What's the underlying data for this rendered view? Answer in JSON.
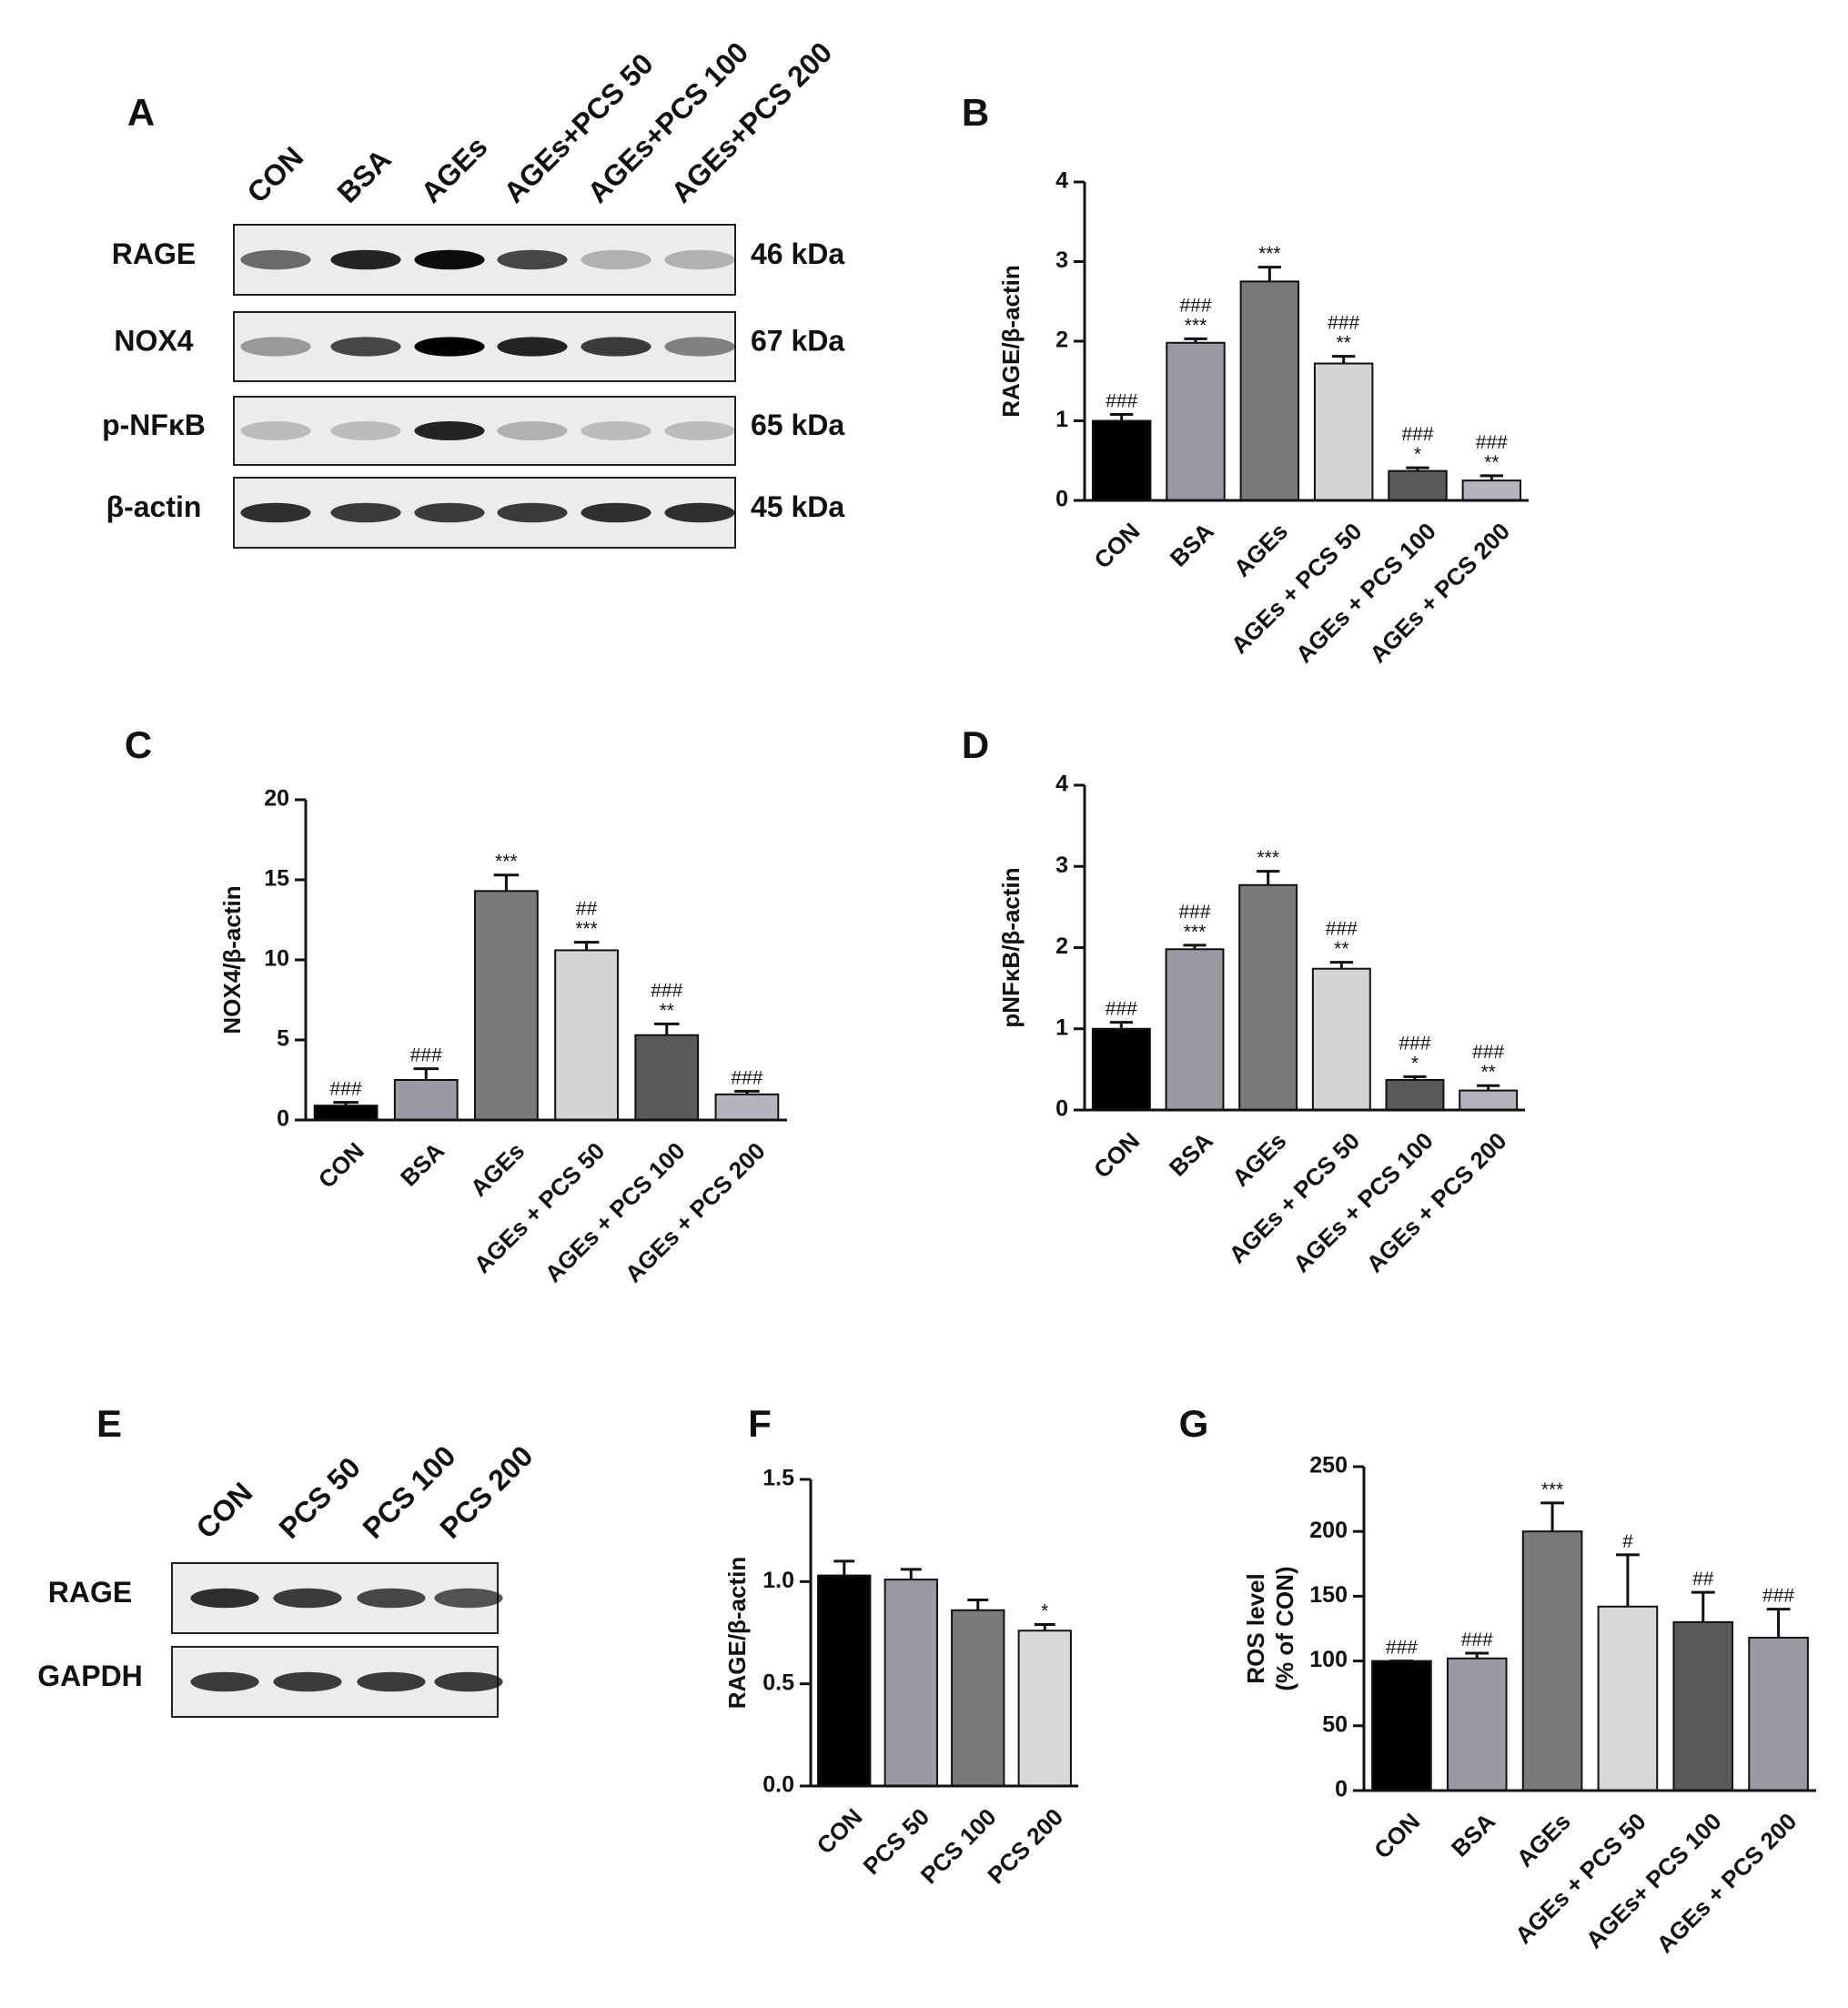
{
  "blots": [
    {
      "panel": "A",
      "lanes": [
        "CON",
        "BSA",
        "AGEs",
        "AGEs+PCS 50",
        "AGEs+PCS 100",
        "AGEs+PCS 200"
      ],
      "rows": [
        {
          "label": "RAGE",
          "size": "46 kDa"
        },
        {
          "label": "NOX4",
          "size": "67 kDa"
        },
        {
          "label": "p-NFκB",
          "size": "65 kDa"
        },
        {
          "label": "β-actin",
          "size": "45 kDa"
        }
      ]
    },
    {
      "panel": "E",
      "lanes": [
        "CON",
        "PCS 50",
        "PCS 100",
        "PCS 200"
      ],
      "rows": [
        {
          "label": "RAGE"
        },
        {
          "label": "GAPDH"
        }
      ]
    }
  ],
  "chart_data": [
    {
      "type": "bar",
      "panel": "B",
      "y_label": "RAGE/β-actin",
      "categories": [
        "CON",
        "BSA",
        "AGEs",
        "AGEs + PCS 50",
        "AGEs + PCS 100",
        "AGEs + PCS 200"
      ],
      "values": [
        1.0,
        1.98,
        2.75,
        1.72,
        0.37,
        0.25
      ],
      "errors": [
        0.08,
        0.05,
        0.18,
        0.09,
        0.04,
        0.06
      ],
      "colors": [
        "#000000",
        "#9a9aa2",
        "#7a7a7a",
        "#d4d4d4",
        "#5a5a5a",
        "#b4b4bc"
      ],
      "annotations": [
        [
          "###"
        ],
        [
          "###",
          "***"
        ],
        [
          "***"
        ],
        [
          "###",
          "**"
        ],
        [
          "###",
          "*"
        ],
        [
          "###",
          "**"
        ]
      ],
      "ylim": [
        0,
        4
      ],
      "yticks": [
        0,
        1,
        2,
        3,
        4
      ]
    },
    {
      "type": "bar",
      "panel": "C",
      "y_label": "NOX4/β-actin",
      "categories": [
        "CON",
        "BSA",
        "AGEs",
        "AGEs + PCS 50",
        "AGEs + PCS 100",
        "AGEs + PCS 200"
      ],
      "values": [
        0.9,
        2.5,
        14.3,
        10.6,
        5.3,
        1.6
      ],
      "errors": [
        0.2,
        0.7,
        1.0,
        0.5,
        0.7,
        0.2
      ],
      "colors": [
        "#000000",
        "#9a9aa2",
        "#7a7a7a",
        "#d4d4d4",
        "#5a5a5a",
        "#b4b4bc"
      ],
      "annotations": [
        [
          "###"
        ],
        [
          "###"
        ],
        [
          "***"
        ],
        [
          "##",
          "***"
        ],
        [
          "###",
          "**"
        ],
        [
          "###"
        ]
      ],
      "ylim": [
        0,
        20
      ],
      "yticks": [
        0,
        5,
        10,
        15,
        20
      ]
    },
    {
      "type": "bar",
      "panel": "D",
      "y_label": "pNFκB/β-actin",
      "categories": [
        "CON",
        "BSA",
        "AGEs",
        "AGEs + PCS 50",
        "AGEs + PCS 100",
        "AGEs + PCS 200"
      ],
      "values": [
        1.0,
        1.98,
        2.77,
        1.74,
        0.37,
        0.24
      ],
      "errors": [
        0.08,
        0.05,
        0.17,
        0.08,
        0.04,
        0.06
      ],
      "colors": [
        "#000000",
        "#9a9aa2",
        "#7a7a7a",
        "#d4d4d4",
        "#5a5a5a",
        "#b4b4bc"
      ],
      "annotations": [
        [
          "###"
        ],
        [
          "###",
          "***"
        ],
        [
          "***"
        ],
        [
          "###",
          "**"
        ],
        [
          "###",
          "*"
        ],
        [
          "###",
          "**"
        ]
      ],
      "ylim": [
        0,
        4
      ],
      "yticks": [
        0,
        1,
        2,
        3,
        4
      ]
    },
    {
      "type": "bar",
      "panel": "F",
      "y_label": "RAGE/β-actin",
      "categories": [
        "CON",
        "PCS 50",
        "PCS 100",
        "PCS 200"
      ],
      "values": [
        1.03,
        1.01,
        0.86,
        0.76
      ],
      "errors": [
        0.07,
        0.05,
        0.05,
        0.03
      ],
      "colors": [
        "#000000",
        "#9a9aa2",
        "#7a7a7a",
        "#d8d8d8"
      ],
      "annotations": [
        null,
        null,
        null,
        [
          "*"
        ]
      ],
      "ylim": [
        0,
        1.5
      ],
      "yticks": [
        {
          "value": 0,
          "label": "0.0"
        },
        {
          "value": 0.5,
          "label": "0.5"
        },
        {
          "value": 1,
          "label": "1.0"
        },
        {
          "value": 1.5,
          "label": "1.5"
        }
      ]
    },
    {
      "type": "bar",
      "panel": "G",
      "y_label": [
        "ROS level",
        "(% of CON)"
      ],
      "categories": [
        "CON",
        "BSA",
        "AGEs",
        "AGEs + PCS 50",
        "AGEs+ PCS 100",
        "AGEs + PCS 200"
      ],
      "values": [
        100,
        102,
        200,
        142,
        130,
        118
      ],
      "errors": [
        0,
        4,
        22,
        40,
        23,
        22
      ],
      "colors": [
        "#000000",
        "#9a9aa2",
        "#7a7a7a",
        "#d8d8d8",
        "#5a5a5a",
        "#9a9aa2"
      ],
      "annotations": [
        [
          "###"
        ],
        [
          "###"
        ],
        [
          "***"
        ],
        [
          "#"
        ],
        [
          "##"
        ],
        [
          "###"
        ]
      ],
      "ylim": [
        0,
        250
      ],
      "yticks": [
        0,
        50,
        100,
        150,
        200,
        250
      ]
    }
  ]
}
